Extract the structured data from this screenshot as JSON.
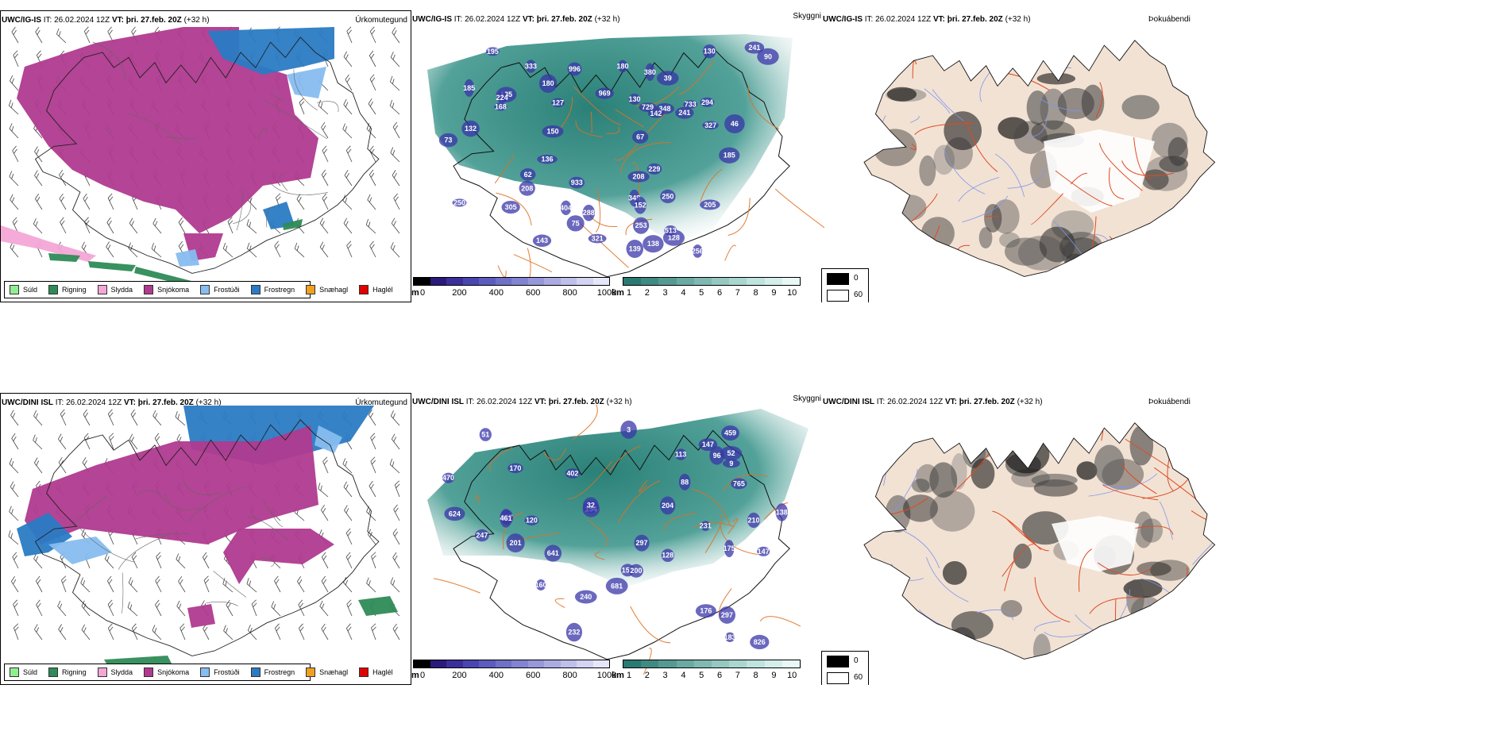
{
  "rows": [
    {
      "model": "UWC/IG-IS",
      "it_label": "IT:",
      "it_value": "26.02.2024 12Z",
      "vt_label": "VT:",
      "vt_value": "þri. 27.feb. 20Z",
      "lead": "(+32 h)",
      "precip_title": "Úrkomutegund",
      "cloud_title": "Skyggni",
      "fog_title": "Þokuábendi",
      "visibility_labels": [
        "969",
        "404",
        "733",
        "333",
        "168",
        "185",
        "348",
        "996",
        "933",
        "250",
        "128",
        "127",
        "75",
        "241",
        "152",
        "208",
        "195",
        "205",
        "143",
        "250",
        "138",
        "135",
        "241",
        "256",
        "729",
        "208",
        "185",
        "305",
        "180",
        "130",
        "348",
        "327",
        "253",
        "229",
        "513",
        "139",
        "294",
        "142",
        "224",
        "130",
        "150",
        "132",
        "136",
        "288",
        "90",
        "73",
        "380",
        "321",
        "67",
        "180",
        "62",
        "39",
        "46"
      ]
    },
    {
      "model": "UWC/DINI ISL",
      "it_label": "IT:",
      "it_value": "26.02.2024 12Z",
      "vt_label": "VT:",
      "vt_value": "þri. 27.feb. 20Z",
      "lead": "(+32 h)",
      "precip_title": "Úrkomutegund",
      "cloud_title": "Skyggni",
      "fog_title": "Þokuábendi",
      "visibility_labels": [
        "210",
        "3",
        "183",
        "402",
        "826",
        "641",
        "624",
        "232",
        "154",
        "153",
        "297",
        "459",
        "200",
        "997",
        "170",
        "147",
        "765",
        "201",
        "175",
        "160",
        "681",
        "240",
        "247",
        "231",
        "461",
        "470",
        "204",
        "96",
        "128",
        "52",
        "147",
        "88",
        "138",
        "120",
        "297",
        "176",
        "32",
        "113",
        "9",
        "51"
      ]
    }
  ],
  "precip_legend": [
    {
      "label": "Súld",
      "color": "#90ee90"
    },
    {
      "label": "Rigning",
      "color": "#2e8b57"
    },
    {
      "label": "Slydda",
      "color": "#f4a6d7"
    },
    {
      "label": "Snjókoma",
      "color": "#b03a8f"
    },
    {
      "label": "Frostúði",
      "color": "#87bdf0"
    },
    {
      "label": "Frostregn",
      "color": "#2a7bc4"
    },
    {
      "label": "Snæhagl",
      "color": "#f0a020"
    },
    {
      "label": "Haglél",
      "color": "#e00000"
    }
  ],
  "colorbars": {
    "height": {
      "unit": "m",
      "ticks": [
        "0",
        "200",
        "400",
        "600",
        "800",
        "1000"
      ],
      "colors": [
        "#000000",
        "#2b1a7a",
        "#3b2f9a",
        "#4a45b0",
        "#5c5cbf",
        "#6f70c8",
        "#8383d2",
        "#9797db",
        "#ababe4",
        "#bfbfec",
        "#d3d3f3",
        "#e6e6fa"
      ]
    },
    "distance": {
      "unit": "km",
      "ticks": [
        "1",
        "2",
        "3",
        "4",
        "5",
        "6",
        "7",
        "8",
        "9",
        "10"
      ],
      "colors": [
        "#2a7a72",
        "#3f8a82",
        "#559a92",
        "#6aaaa2",
        "#80b9b2",
        "#95c8c1",
        "#aad6d0",
        "#bfe3de",
        "#d4eeea",
        "#e9f7f5"
      ]
    },
    "fog": {
      "items": [
        {
          "label": "0",
          "color": "#000000"
        },
        {
          "label": "60",
          "color": "#ffffff"
        }
      ]
    }
  },
  "colors": {
    "snow": "#b03a8f",
    "freezing_rain": "#2a7bc4",
    "freezing_drizzle": "#87bdf0",
    "rain": "#2e8b57",
    "sleet": "#f4a6d7",
    "teal": "#2e8a80",
    "road": "#e07020",
    "land": "#f2e2d4",
    "fog_road": "#e04a20"
  }
}
